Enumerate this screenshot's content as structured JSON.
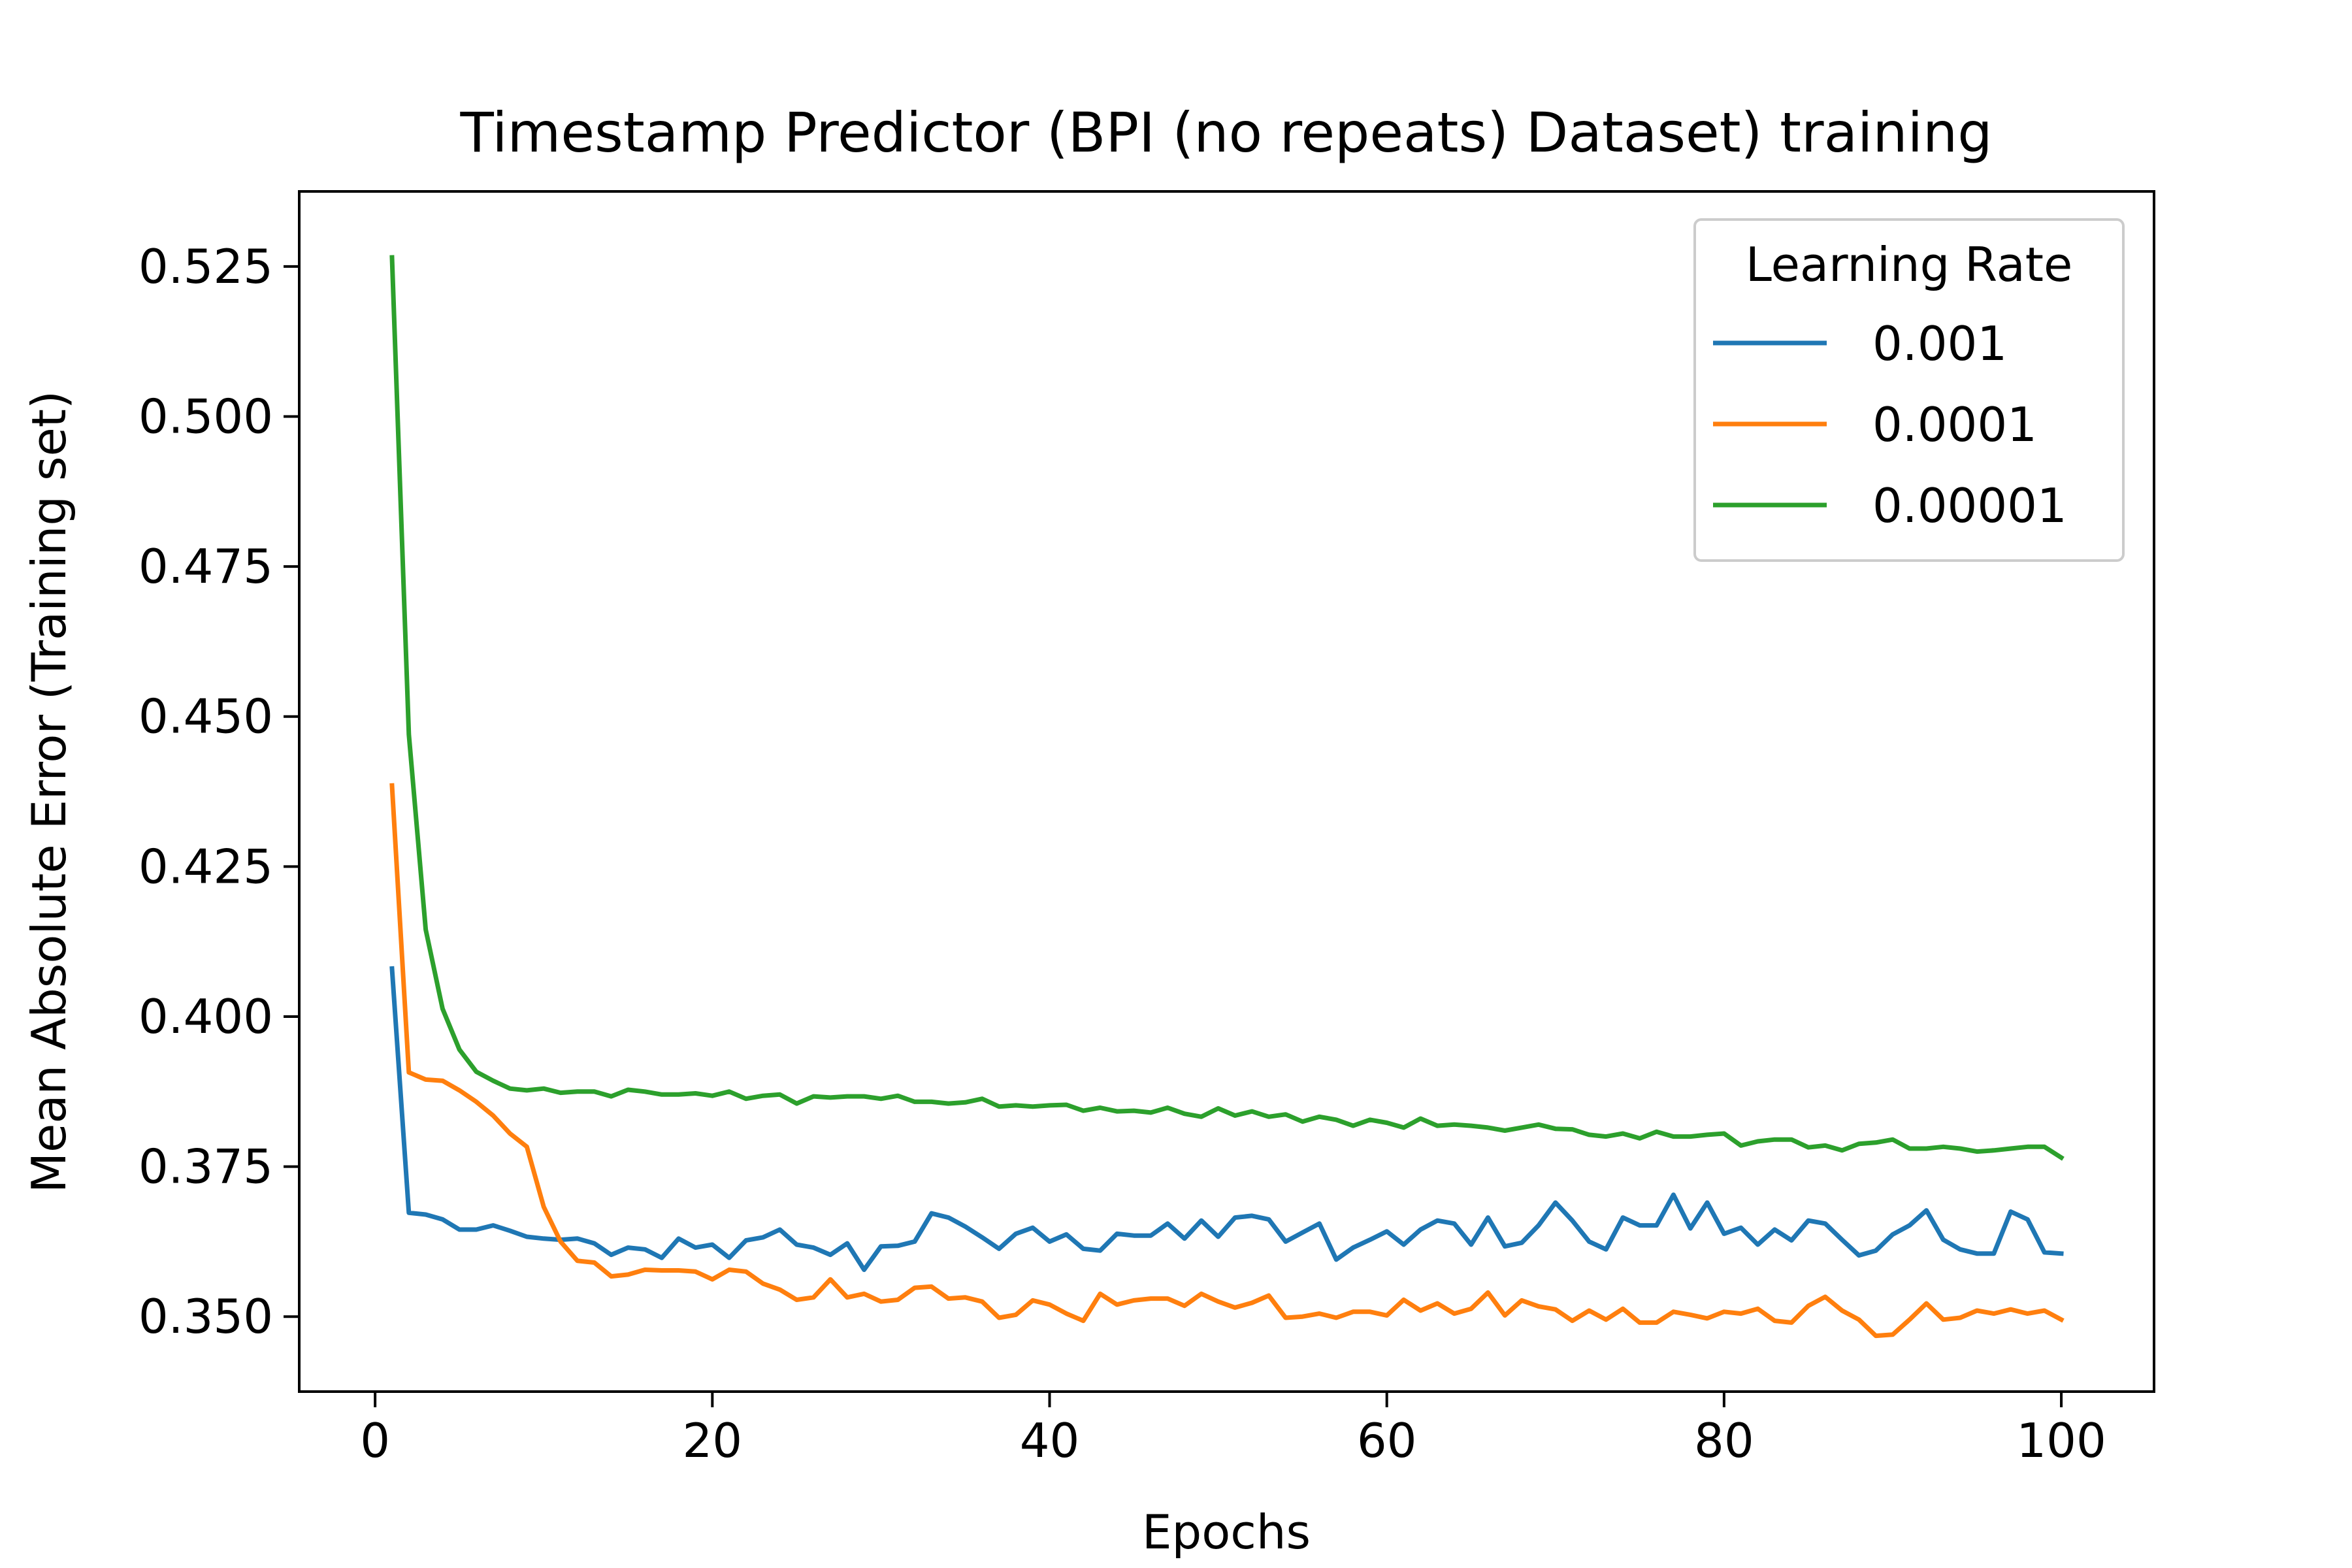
{
  "chart_data": {
    "type": "line",
    "title": "Timestamp Predictor (BPI (no repeats) Dataset) training",
    "xlabel": "Epochs",
    "ylabel": "Mean Absolute Error (Training set)",
    "xlim": [
      -4.5,
      105.5
    ],
    "ylim": [
      0.3375,
      0.5375
    ],
    "xticks": [
      0,
      20,
      40,
      60,
      80,
      100
    ],
    "xtick_labels": [
      "0",
      "20",
      "40",
      "60",
      "80",
      "100"
    ],
    "yticks": [
      0.35,
      0.375,
      0.4,
      0.425,
      0.45,
      0.475,
      0.5,
      0.525
    ],
    "ytick_labels": [
      "0.350",
      "0.375",
      "0.400",
      "0.425",
      "0.450",
      "0.475",
      "0.500",
      "0.525"
    ],
    "grid": false,
    "legend": {
      "title": "Learning Rate",
      "placement": "top-right"
    },
    "series": [
      {
        "name": "0.001",
        "color": "#1f77b4",
        "values": [
          0.408,
          0.3673,
          0.367,
          0.3662,
          0.3645,
          0.3645,
          0.3652,
          0.3643,
          0.3633,
          0.363,
          0.3628,
          0.363,
          0.3622,
          0.3603,
          0.3615,
          0.3612,
          0.3598,
          0.363,
          0.3615,
          0.362,
          0.3598,
          0.3627,
          0.3632,
          0.3645,
          0.362,
          0.3615,
          0.3603,
          0.3622,
          0.3578,
          0.3617,
          0.3618,
          0.3625,
          0.3672,
          0.3665,
          0.365,
          0.3632,
          0.3613,
          0.3638,
          0.3648,
          0.3625,
          0.3637,
          0.3613,
          0.361,
          0.3638,
          0.3635,
          0.3635,
          0.3655,
          0.363,
          0.366,
          0.3633,
          0.3665,
          0.3668,
          0.3662,
          0.3625,
          0.364,
          0.3655,
          0.3595,
          0.3615,
          0.3628,
          0.3642,
          0.362,
          0.3645,
          0.366,
          0.3655,
          0.362,
          0.3665,
          0.3617,
          0.3623,
          0.3652,
          0.369,
          0.366,
          0.3625,
          0.3612,
          0.3665,
          0.3652,
          0.3652,
          0.3703,
          0.3647,
          0.369,
          0.3638,
          0.3648,
          0.362,
          0.3645,
          0.3627,
          0.366,
          0.3655,
          0.3628,
          0.3602,
          0.361,
          0.3637,
          0.3652,
          0.3677,
          0.3628,
          0.3612,
          0.3605,
          0.3605,
          0.3675,
          0.3662,
          0.3607,
          0.3605
        ]
      },
      {
        "name": "0.0001",
        "color": "#ff7f0e",
        "values": [
          0.4385,
          0.3907,
          0.3895,
          0.3893,
          0.3877,
          0.3858,
          0.3835,
          0.3805,
          0.3783,
          0.3683,
          0.3625,
          0.3593,
          0.359,
          0.3567,
          0.357,
          0.3578,
          0.3577,
          0.3577,
          0.3575,
          0.3562,
          0.3578,
          0.3575,
          0.3555,
          0.3545,
          0.3528,
          0.3532,
          0.3562,
          0.3532,
          0.3538,
          0.3525,
          0.3528,
          0.3548,
          0.355,
          0.353,
          0.3532,
          0.3525,
          0.3498,
          0.3503,
          0.3527,
          0.352,
          0.3505,
          0.3493,
          0.3538,
          0.352,
          0.3527,
          0.353,
          0.353,
          0.3518,
          0.3538,
          0.3525,
          0.3515,
          0.3523,
          0.3535,
          0.3498,
          0.35,
          0.3505,
          0.3498,
          0.3508,
          0.3508,
          0.3502,
          0.3528,
          0.351,
          0.3522,
          0.3505,
          0.3513,
          0.354,
          0.3502,
          0.3527,
          0.3517,
          0.3512,
          0.3493,
          0.351,
          0.3495,
          0.3513,
          0.349,
          0.349,
          0.3508,
          0.3503,
          0.3497,
          0.3508,
          0.3505,
          0.3513,
          0.3493,
          0.349,
          0.3518,
          0.3533,
          0.351,
          0.3495,
          0.3468,
          0.347,
          0.3495,
          0.3522,
          0.3495,
          0.3498,
          0.351,
          0.3505,
          0.3512,
          0.3505,
          0.351,
          0.3495
        ]
      },
      {
        "name": "0.00001",
        "color": "#2ca02c",
        "values": [
          0.5265,
          0.447,
          0.4145,
          0.4013,
          0.3945,
          0.3908,
          0.3893,
          0.388,
          0.3877,
          0.388,
          0.3873,
          0.3875,
          0.3875,
          0.3867,
          0.3878,
          0.3875,
          0.387,
          0.387,
          0.3872,
          0.3868,
          0.3875,
          0.3863,
          0.3868,
          0.387,
          0.3855,
          0.3867,
          0.3865,
          0.3867,
          0.3867,
          0.3863,
          0.3868,
          0.3858,
          0.3858,
          0.3855,
          0.3857,
          0.3863,
          0.385,
          0.3852,
          0.385,
          0.3852,
          0.3853,
          0.3843,
          0.3848,
          0.3842,
          0.3843,
          0.384,
          0.3848,
          0.3838,
          0.3833,
          0.3847,
          0.3835,
          0.3842,
          0.3833,
          0.3837,
          0.3825,
          0.3833,
          0.3828,
          0.3818,
          0.3828,
          0.3823,
          0.3815,
          0.383,
          0.3818,
          0.382,
          0.3818,
          0.3815,
          0.381,
          0.3815,
          0.382,
          0.3813,
          0.3812,
          0.3803,
          0.38,
          0.3805,
          0.3797,
          0.3808,
          0.38,
          0.38,
          0.3803,
          0.3805,
          0.3785,
          0.3792,
          0.3795,
          0.3795,
          0.3782,
          0.3785,
          0.3777,
          0.3788,
          0.379,
          0.3795,
          0.378,
          0.378,
          0.3783,
          0.378,
          0.3775,
          0.3777,
          0.378,
          0.3783,
          0.3783,
          0.3765
        ]
      }
    ]
  }
}
